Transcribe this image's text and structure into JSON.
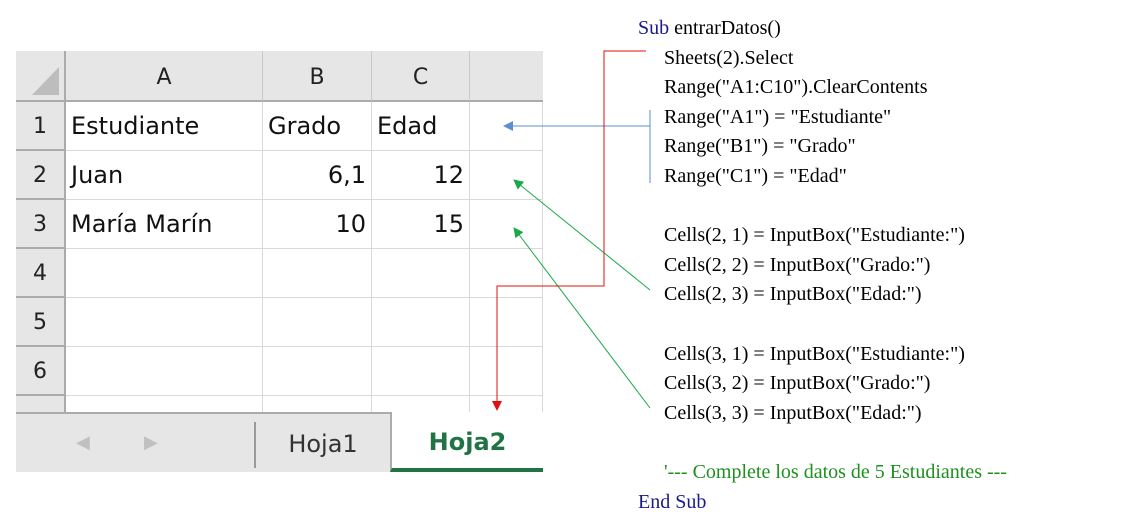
{
  "spreadsheet": {
    "columns": [
      "A",
      "B",
      "C"
    ],
    "rows": [
      "1",
      "2",
      "3",
      "4",
      "5",
      "6"
    ],
    "cells": [
      [
        "Estudiante",
        "Grado",
        "Edad"
      ],
      [
        "Juan",
        "6,1",
        "12"
      ],
      [
        "María Marín",
        "10",
        "15"
      ]
    ],
    "tabs": [
      {
        "label": "Hoja1",
        "active": false
      },
      {
        "label": "Hoja2",
        "active": true
      }
    ],
    "active_tab_color": "#217346"
  },
  "code": {
    "lines": [
      {
        "kw": "Sub",
        "text": " entrarDatos()"
      },
      {
        "text": "Sheets(2).Select"
      },
      {
        "text": "Range(\"A1:C10\").ClearContents"
      },
      {
        "text": "Range(\"A1\") = \"Estudiante\""
      },
      {
        "text": "Range(\"B1\") = \"Grado\""
      },
      {
        "text": "Range(\"C1\") = \"Edad\""
      },
      {
        "text": ""
      },
      {
        "text": "Cells(2, 1) = InputBox(\"Estudiante:\")"
      },
      {
        "text": "Cells(2, 2) = InputBox(\"Grado:\")"
      },
      {
        "text": "Cells(2, 3) = InputBox(\"Edad:\")"
      },
      {
        "text": ""
      },
      {
        "text": "Cells(3, 1) = InputBox(\"Estudiante:\")"
      },
      {
        "text": "Cells(3, 2) = InputBox(\"Grado:\")"
      },
      {
        "text": "Cells(3, 3) = InputBox(\"Edad:\")"
      },
      {
        "text": ""
      },
      {
        "comment": "'--- Complete los datos de 5 Estudiantes ---"
      },
      {
        "kw": "End Sub",
        "text": ""
      }
    ],
    "keyword_color": "#1a1a8c",
    "comment_color": "#1f8f1f"
  },
  "arrows": {
    "blue": "#5b8fd0",
    "green": "#1aa84a",
    "red": "#e01010"
  }
}
